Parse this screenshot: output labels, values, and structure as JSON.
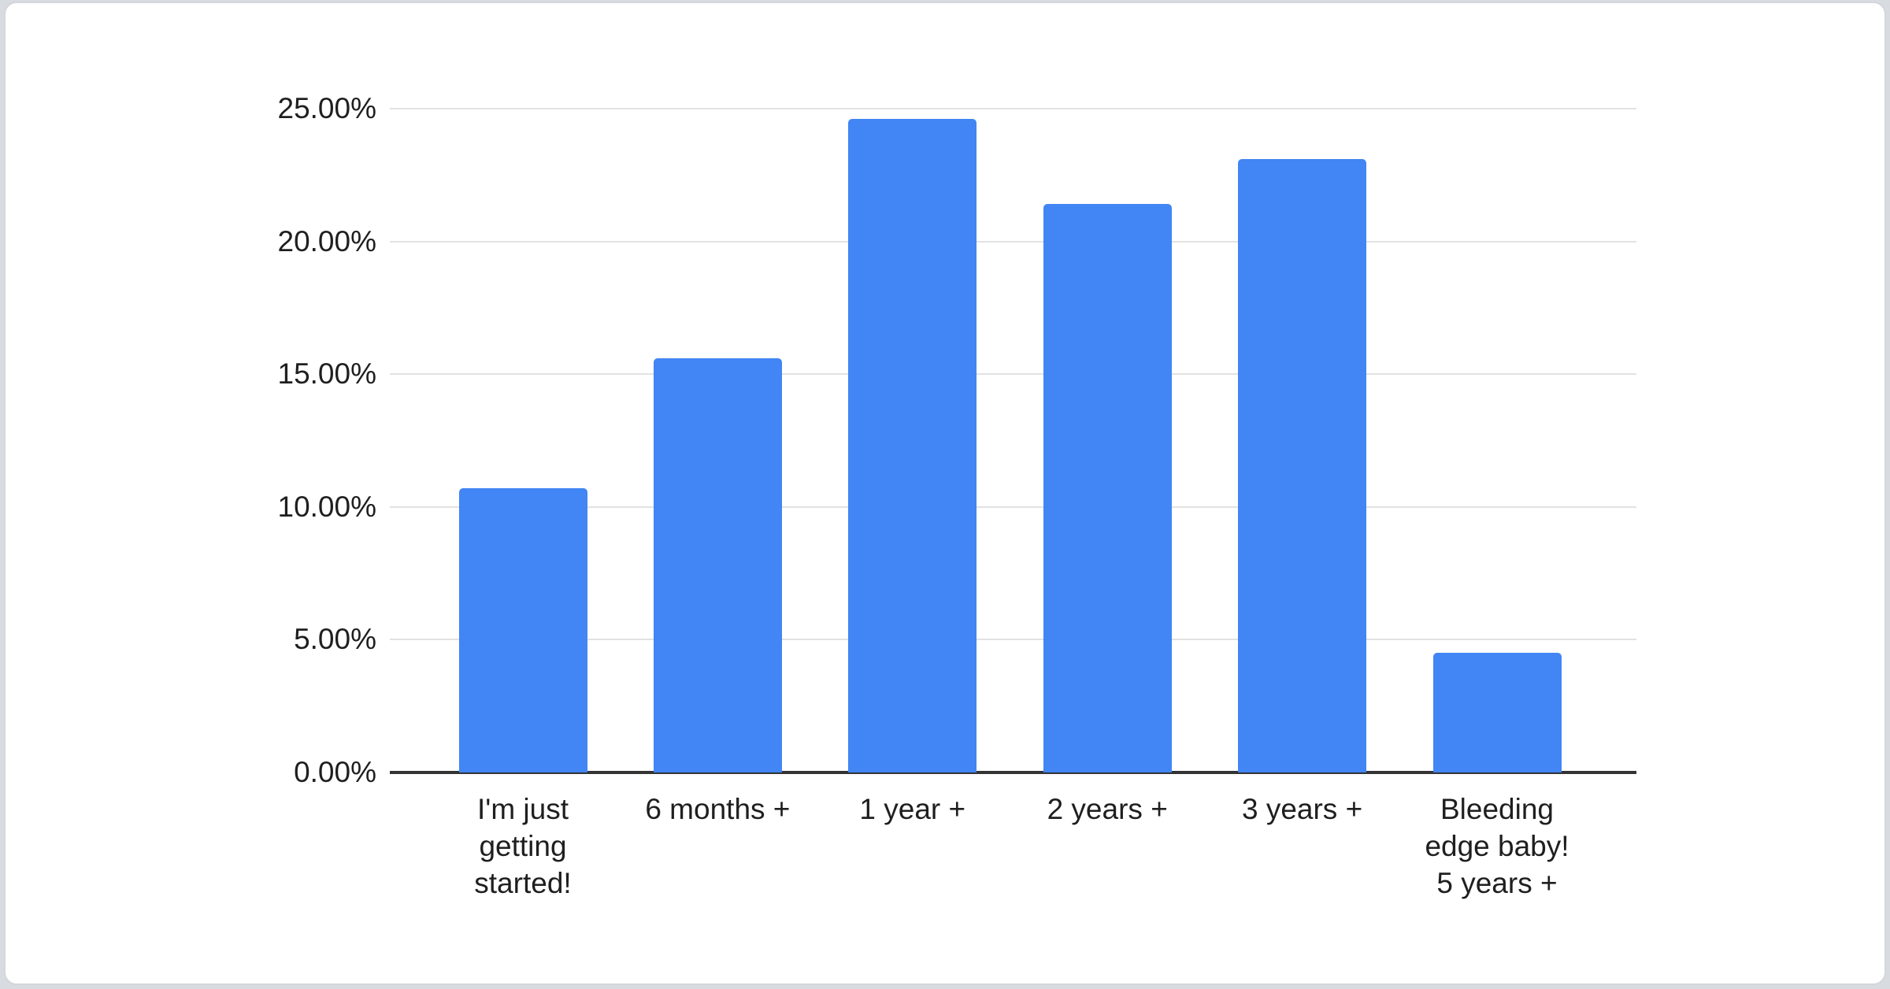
{
  "page": {
    "background_color": "#d8dbe0"
  },
  "card": {
    "background_color": "#ffffff",
    "border_color": "#d3d6da"
  },
  "chart_data": {
    "type": "bar",
    "title": "",
    "xlabel": "",
    "ylabel": "",
    "categories": [
      "I'm just getting started!",
      "6 months +",
      "1 year +",
      "2 years +",
      "3 years +",
      "Bleeding edge baby! 5 years +"
    ],
    "category_lines": [
      [
        "I'm just",
        "getting",
        "started!"
      ],
      [
        "6 months +"
      ],
      [
        "1 year +"
      ],
      [
        "2 years +"
      ],
      [
        "3 years +"
      ],
      [
        "Bleeding",
        "edge baby!",
        "5 years +"
      ]
    ],
    "values": [
      10.7,
      15.6,
      24.6,
      21.4,
      23.1,
      4.5
    ],
    "unit": "%",
    "ylim": [
      0,
      25
    ],
    "y_tick_values": [
      0,
      5,
      10,
      15,
      20,
      25
    ],
    "y_ticks": [
      "0.00%",
      "5.00%",
      "10.00%",
      "15.00%",
      "20.00%",
      "25.00%"
    ],
    "grid": true,
    "legend": "none",
    "bar_color": "#4285f4",
    "gridline_color": "#e2e2e2",
    "axis_line_color": "#333333",
    "label_color": "#1f1f1f"
  }
}
